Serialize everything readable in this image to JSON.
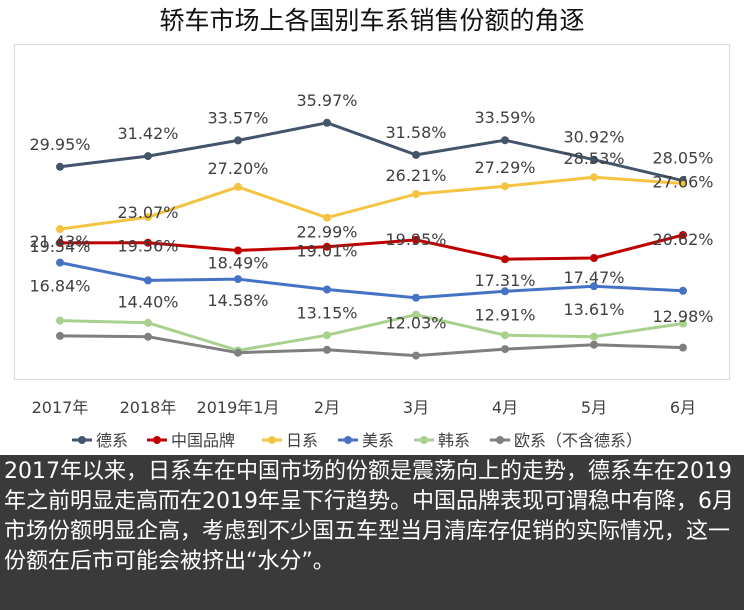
{
  "title": "轿车市场上各国别车系销售份额的角逐",
  "caption": "2017年以来，日系车在中国市场的份额是震荡向上的走势，德系车在2019年之前明显走高而在2019年呈下行趋势。中国品牌表现可谓稳中有降，6月市场份额明显企高，考虑到不少国五车型当月清库存促销的实际情况，这一份额在后市可能会被挤出“水分”。",
  "chart_data": {
    "type": "line",
    "categories": [
      "2017年",
      "2018年",
      "2019年1月",
      "2月",
      "3月",
      "4月",
      "5月",
      "6月"
    ],
    "series": [
      {
        "name": "德系",
        "color": "#44546a",
        "values": [
          29.95,
          31.42,
          33.57,
          35.97,
          31.58,
          33.59,
          30.92,
          28.05
        ],
        "labels": [
          "29.95%",
          "31.42%",
          "33.57%",
          "35.97%",
          "31.58%",
          "33.59%",
          "30.92%",
          "28.05%"
        ]
      },
      {
        "name": "中国品牌",
        "color": "#c00000",
        "values": [
          19.54,
          19.56,
          18.49,
          19.01,
          19.95,
          17.31,
          17.47,
          20.62
        ],
        "labels": [
          "19.54%",
          "19.56%",
          "18.49%",
          "19.01%",
          "19.95%",
          "17.31%",
          "17.47%",
          "20.62%"
        ]
      },
      {
        "name": "日系",
        "color": "#f5c342",
        "values": [
          21.43,
          23.07,
          27.2,
          22.99,
          26.21,
          27.29,
          28.53,
          27.66
        ],
        "labels": [
          "21.43%",
          "23.07%",
          "27.20%",
          "22.99%",
          "26.21%",
          "27.29%",
          "28.53%",
          "27.66%"
        ]
      },
      {
        "name": "美系",
        "color": "#4472c4",
        "values": [
          16.84,
          14.4,
          14.58,
          13.15,
          12.03,
          12.91,
          13.61,
          12.98
        ],
        "labels": [
          "16.84%",
          "14.40%",
          "14.58%",
          "13.15%",
          "12.03%",
          "12.91%",
          "13.61%",
          "12.98%"
        ]
      },
      {
        "name": "韩系",
        "color": "#a9d18e",
        "values": [
          8.9,
          8.6,
          4.8,
          6.9,
          9.7,
          6.9,
          6.7,
          8.5
        ],
        "labels": []
      },
      {
        "name": "欧系（不含德系）",
        "color": "#7f7f7f",
        "values": [
          6.8,
          6.7,
          4.5,
          4.9,
          4.1,
          5.0,
          5.6,
          5.2
        ],
        "labels": []
      }
    ]
  }
}
